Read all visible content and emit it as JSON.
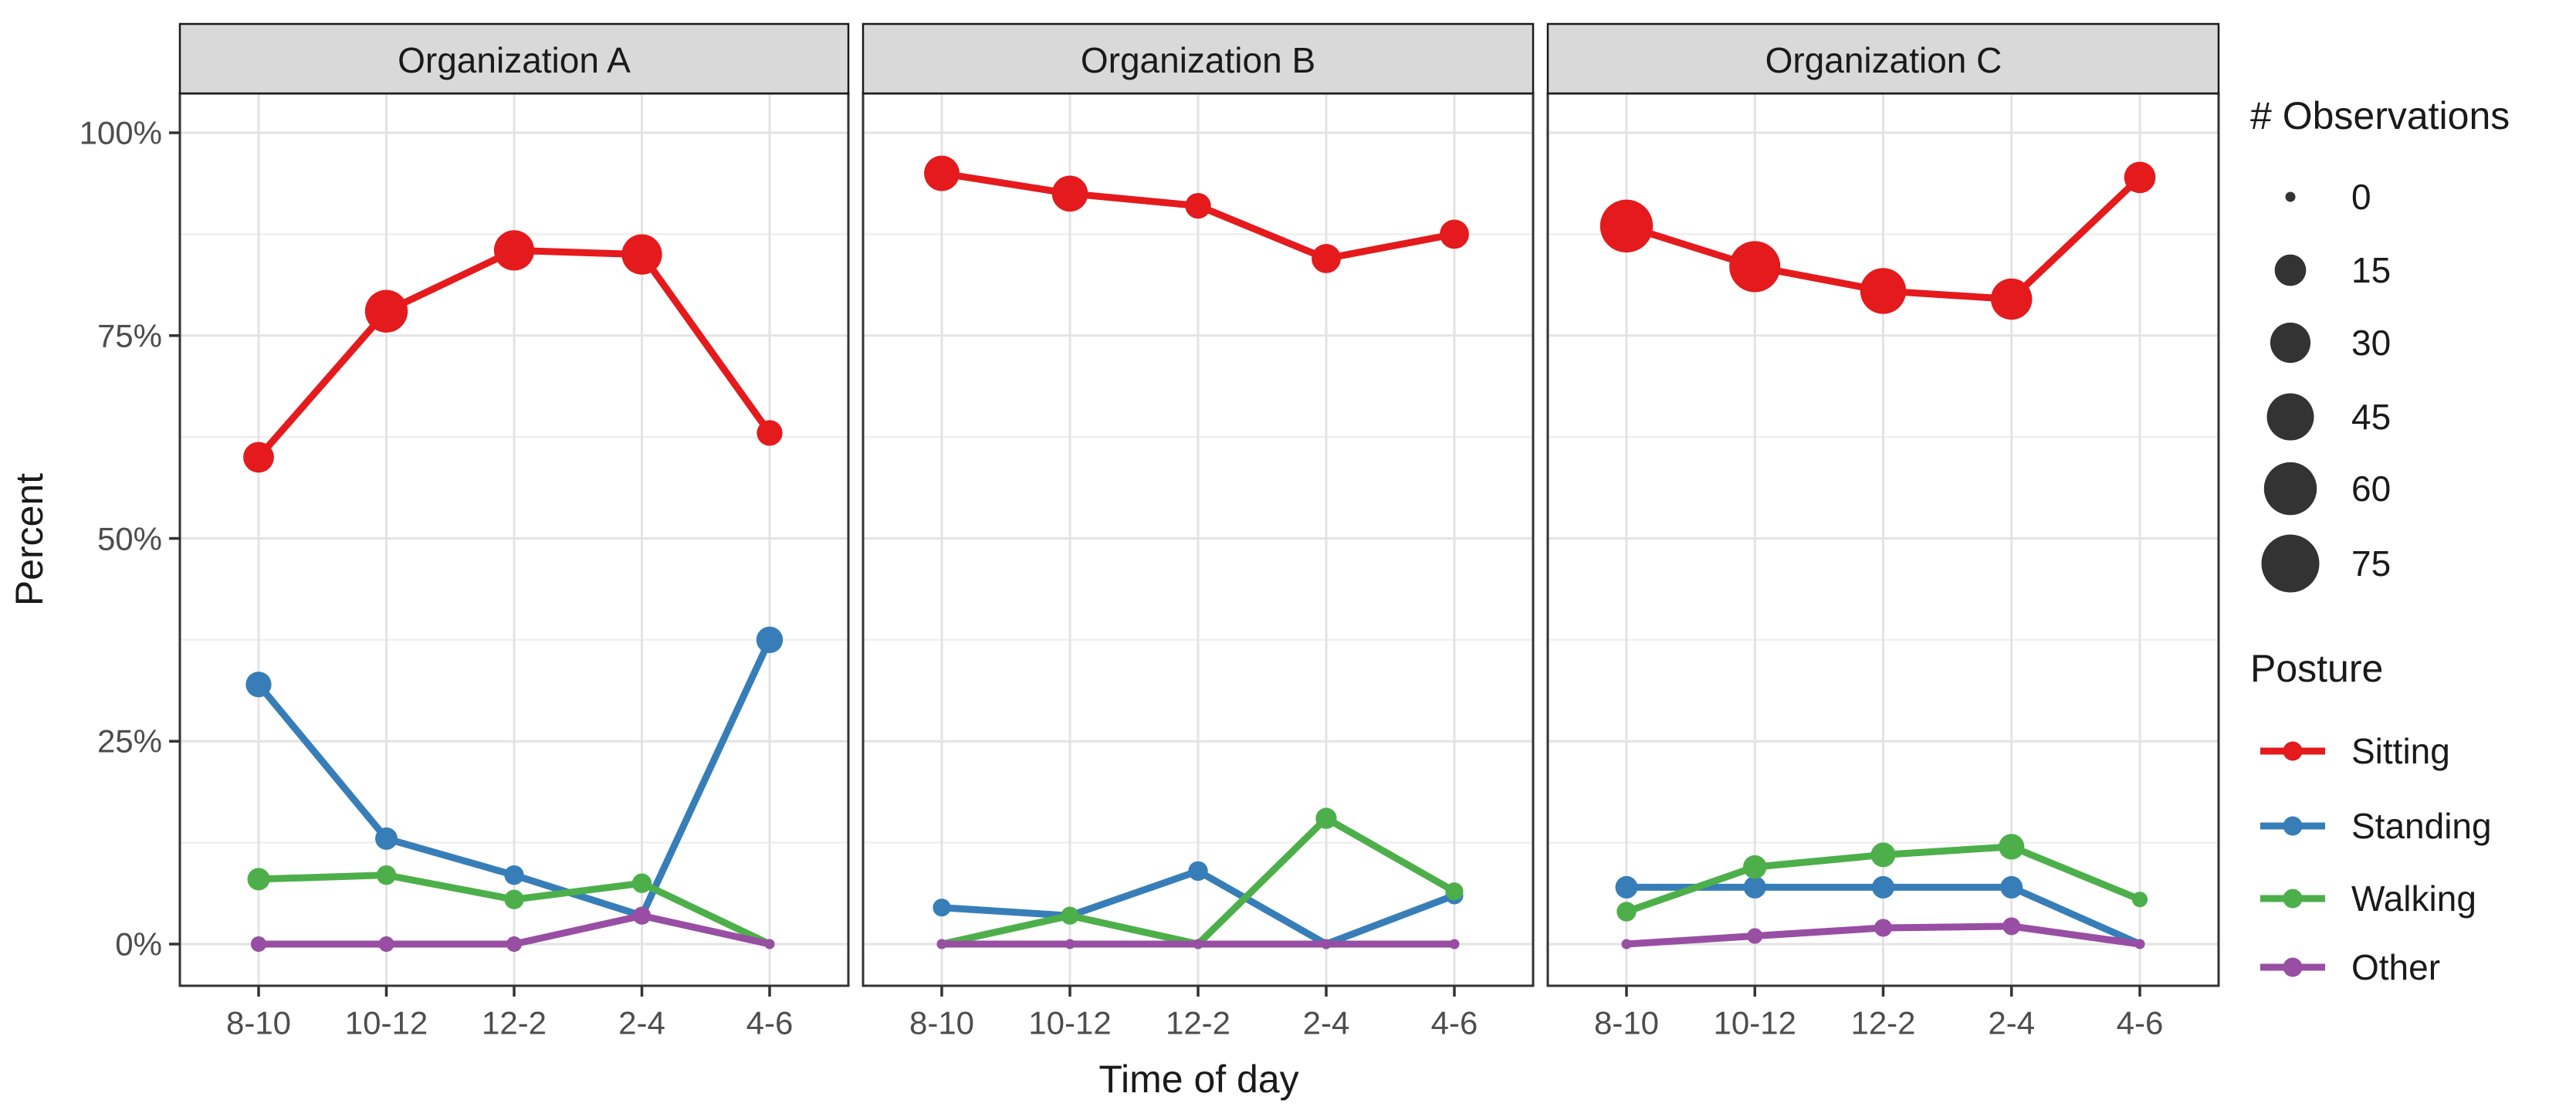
{
  "chart_data": {
    "type": "line",
    "title": "",
    "xlabel": "Time of day",
    "ylabel": "Percent",
    "categories": [
      "8-10",
      "10-12",
      "12-2",
      "2-4",
      "4-6"
    ],
    "y_ticks": [
      "0%",
      "25%",
      "50%",
      "75%",
      "100%"
    ],
    "y_tick_values": [
      0,
      25,
      50,
      75,
      100
    ],
    "y_minor_values": [
      12.5,
      37.5,
      62.5,
      87.5
    ],
    "ylim": [
      -3,
      105
    ],
    "grid": "major+minor",
    "legend_position": "right",
    "point_size_encodes": "number of observations",
    "panels": [
      {
        "title": "Organization A",
        "series": [
          {
            "name": "Sitting",
            "color": "#E41A1C",
            "percent": [
              60,
              78,
              85.5,
              85,
              63
            ],
            "n_obs": [
              14,
              35,
              30,
              30,
              8
            ]
          },
          {
            "name": "Standing",
            "color": "#377EB8",
            "percent": [
              32,
              13,
              8.5,
              3.5,
              37.5
            ],
            "n_obs": [
              8,
              5,
              3,
              2,
              9
            ]
          },
          {
            "name": "Walking",
            "color": "#4DAF4A",
            "percent": [
              8,
              8.5,
              5.5,
              7.5,
              0
            ],
            "n_obs": [
              5,
              3,
              3,
              3,
              0
            ]
          },
          {
            "name": "Other",
            "color": "#984EA3",
            "percent": [
              0,
              0,
              0,
              3.5,
              0
            ],
            "n_obs": [
              1,
              1,
              1,
              2,
              0
            ]
          }
        ]
      },
      {
        "title": "Organization B",
        "series": [
          {
            "name": "Sitting",
            "color": "#E41A1C",
            "percent": [
              95,
              92.5,
              91,
              84.5,
              87.5
            ],
            "n_obs": [
              21,
              22,
              8,
              12,
              12
            ]
          },
          {
            "name": "Standing",
            "color": "#377EB8",
            "percent": [
              4.5,
              3.5,
              9,
              0,
              6
            ],
            "n_obs": [
              2,
              2,
              3,
              0,
              2
            ]
          },
          {
            "name": "Walking",
            "color": "#4DAF4A",
            "percent": [
              0,
              3.5,
              0,
              15.5,
              6.5
            ],
            "n_obs": [
              0,
              2,
              0,
              4,
              2
            ]
          },
          {
            "name": "Other",
            "color": "#984EA3",
            "percent": [
              0,
              0,
              0,
              0,
              0
            ],
            "n_obs": [
              0,
              0,
              0,
              0,
              0
            ]
          }
        ]
      },
      {
        "title": "Organization C",
        "series": [
          {
            "name": "Sitting",
            "color": "#E41A1C",
            "percent": [
              88.5,
              83.5,
              80.5,
              79.5,
              94.5
            ],
            "n_obs": [
              60,
              55,
              42,
              32,
              15
            ]
          },
          {
            "name": "Standing",
            "color": "#377EB8",
            "percent": [
              7,
              7,
              7,
              7,
              0
            ],
            "n_obs": [
              5,
              5,
              5,
              5,
              0
            ]
          },
          {
            "name": "Walking",
            "color": "#4DAF4A",
            "percent": [
              4,
              9.5,
              11,
              12,
              5.5
            ],
            "n_obs": [
              3,
              6,
              7,
              8,
              1
            ]
          },
          {
            "name": "Other",
            "color": "#984EA3",
            "percent": [
              0,
              1,
              2,
              2.2,
              0
            ],
            "n_obs": [
              0,
              1,
              2,
              2,
              0
            ]
          }
        ]
      }
    ],
    "size_legend": {
      "title": "# Observations",
      "breaks": [
        0,
        15,
        30,
        45,
        60,
        75
      ],
      "dot_color": "#333333"
    },
    "color_legend": {
      "title": "Posture",
      "entries": [
        {
          "label": "Sitting",
          "color": "#E41A1C"
        },
        {
          "label": "Standing",
          "color": "#377EB8"
        },
        {
          "label": "Walking",
          "color": "#4DAF4A"
        },
        {
          "label": "Other",
          "color": "#984EA3"
        }
      ]
    },
    "colors": {
      "strip_background": "#d9d9d9",
      "panel_border": "#333333",
      "grid_major": "#e3e3e3",
      "grid_minor": "#eeeeee",
      "axis_text": "#4d4d4d"
    }
  }
}
